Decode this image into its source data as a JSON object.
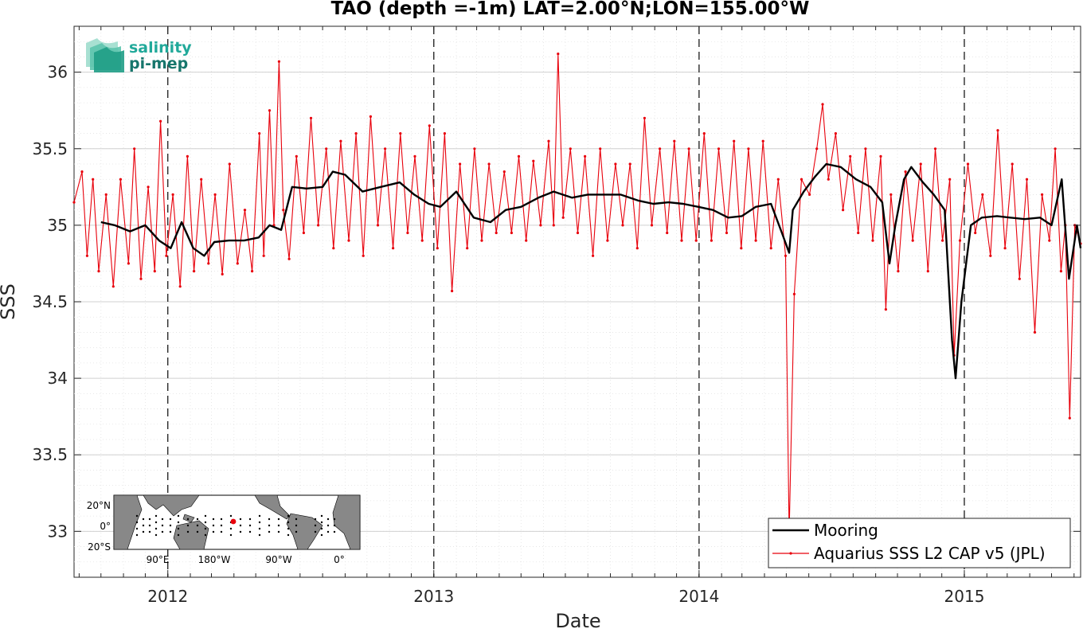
{
  "chart_data": {
    "type": "line",
    "title": "TAO (depth =-1m) LAT=2.00°N;LON=155.00°W",
    "xlabel": "Date",
    "ylabel": "SSS",
    "x_tick_labels": [
      "2012",
      "2013",
      "2014",
      "2015"
    ],
    "y_tick_labels": [
      "33",
      "33.5",
      "34",
      "34.5",
      "35",
      "35.5",
      "36"
    ],
    "xlim": [
      "2011-08-25",
      "2015-06-10"
    ],
    "ylim": [
      32.7,
      36.3
    ],
    "grid": true,
    "year_markers": [
      "2012-01-01",
      "2013-01-01",
      "2014-01-01",
      "2015-01-01"
    ],
    "legend": {
      "position": "bottom-right",
      "entries": [
        "Mooring",
        "Aquarius SSS L2 CAP v5 (JPL)"
      ]
    },
    "series": [
      {
        "name": "Mooring",
        "color": "#000000",
        "points": [
          [
            "2011-10-01",
            35.02
          ],
          [
            "2011-10-20",
            35.0
          ],
          [
            "2011-11-10",
            34.96
          ],
          [
            "2011-12-01",
            35.0
          ],
          [
            "2011-12-20",
            34.9
          ],
          [
            "2012-01-05",
            34.85
          ],
          [
            "2012-01-20",
            35.02
          ],
          [
            "2012-02-05",
            34.85
          ],
          [
            "2012-02-20",
            34.8
          ],
          [
            "2012-03-05",
            34.89
          ],
          [
            "2012-03-25",
            34.9
          ],
          [
            "2012-04-15",
            34.9
          ],
          [
            "2012-05-05",
            34.92
          ],
          [
            "2012-05-20",
            35.0
          ],
          [
            "2012-06-05",
            34.97
          ],
          [
            "2012-06-20",
            35.25
          ],
          [
            "2012-07-10",
            35.24
          ],
          [
            "2012-08-01",
            35.25
          ],
          [
            "2012-08-15",
            35.35
          ],
          [
            "2012-09-01",
            35.33
          ],
          [
            "2012-09-25",
            35.22
          ],
          [
            "2012-10-20",
            35.25
          ],
          [
            "2012-11-15",
            35.28
          ],
          [
            "2012-12-05",
            35.2
          ],
          [
            "2012-12-25",
            35.14
          ],
          [
            "2013-01-10",
            35.12
          ],
          [
            "2013-02-01",
            35.22
          ],
          [
            "2013-02-25",
            35.05
          ],
          [
            "2013-03-20",
            35.02
          ],
          [
            "2013-04-10",
            35.1
          ],
          [
            "2013-05-01",
            35.12
          ],
          [
            "2013-05-25",
            35.18
          ],
          [
            "2013-06-15",
            35.22
          ],
          [
            "2013-07-10",
            35.18
          ],
          [
            "2013-08-01",
            35.2
          ],
          [
            "2013-08-25",
            35.2
          ],
          [
            "2013-09-15",
            35.2
          ],
          [
            "2013-10-10",
            35.16
          ],
          [
            "2013-10-30",
            35.14
          ],
          [
            "2013-11-20",
            35.15
          ],
          [
            "2013-12-10",
            35.14
          ],
          [
            "2013-12-31",
            35.12
          ],
          [
            "2014-01-20",
            35.1
          ],
          [
            "2014-02-10",
            35.05
          ],
          [
            "2014-03-01",
            35.06
          ],
          [
            "2014-03-20",
            35.12
          ],
          [
            "2014-04-10",
            35.14
          ],
          [
            "2014-04-25",
            34.95
          ],
          [
            "2014-05-05",
            34.82
          ],
          [
            "2014-05-10",
            35.1
          ],
          [
            "2014-05-25",
            35.22
          ],
          [
            "2014-06-10",
            35.32
          ],
          [
            "2014-06-25",
            35.4
          ],
          [
            "2014-07-15",
            35.38
          ],
          [
            "2014-08-05",
            35.3
          ],
          [
            "2014-08-25",
            35.25
          ],
          [
            "2014-09-10",
            35.15
          ],
          [
            "2014-09-20",
            34.75
          ],
          [
            "2014-09-28",
            35.0
          ],
          [
            "2014-10-10",
            35.3
          ],
          [
            "2014-10-20",
            35.38
          ],
          [
            "2014-11-05",
            35.28
          ],
          [
            "2014-11-20",
            35.2
          ],
          [
            "2014-12-05",
            35.1
          ],
          [
            "2014-12-15",
            34.25
          ],
          [
            "2014-12-20",
            34.0
          ],
          [
            "2014-12-28",
            34.5
          ],
          [
            "2015-01-10",
            35.0
          ],
          [
            "2015-01-25",
            35.05
          ],
          [
            "2015-02-15",
            35.06
          ],
          [
            "2015-03-05",
            35.05
          ],
          [
            "2015-03-25",
            35.04
          ],
          [
            "2015-04-15",
            35.05
          ],
          [
            "2015-05-01",
            35.0
          ],
          [
            "2015-05-15",
            35.3
          ],
          [
            "2015-05-25",
            34.65
          ],
          [
            "2015-06-05",
            35.0
          ],
          [
            "2015-06-10",
            34.85
          ]
        ]
      },
      {
        "name": "Aquarius SSS L2 CAP v5 (JPL)",
        "color": "#e8000b",
        "points": [
          [
            "2011-08-25",
            35.15
          ],
          [
            "2011-09-05",
            35.35
          ],
          [
            "2011-09-12",
            34.8
          ],
          [
            "2011-09-20",
            35.3
          ],
          [
            "2011-09-28",
            34.7
          ],
          [
            "2011-10-08",
            35.2
          ],
          [
            "2011-10-18",
            34.6
          ],
          [
            "2011-10-28",
            35.3
          ],
          [
            "2011-11-08",
            34.75
          ],
          [
            "2011-11-16",
            35.5
          ],
          [
            "2011-11-25",
            34.65
          ],
          [
            "2011-12-05",
            35.25
          ],
          [
            "2011-12-14",
            34.7
          ],
          [
            "2011-12-22",
            35.68
          ],
          [
            "2011-12-30",
            34.8
          ],
          [
            "2012-01-08",
            35.2
          ],
          [
            "2012-01-18",
            34.6
          ],
          [
            "2012-01-28",
            35.45
          ],
          [
            "2012-02-06",
            34.7
          ],
          [
            "2012-02-16",
            35.3
          ],
          [
            "2012-02-26",
            34.75
          ],
          [
            "2012-03-06",
            35.2
          ],
          [
            "2012-03-16",
            34.68
          ],
          [
            "2012-03-26",
            35.4
          ],
          [
            "2012-04-06",
            34.75
          ],
          [
            "2012-04-16",
            35.1
          ],
          [
            "2012-04-26",
            34.7
          ],
          [
            "2012-05-06",
            35.6
          ],
          [
            "2012-05-12",
            34.8
          ],
          [
            "2012-05-20",
            35.75
          ],
          [
            "2012-05-26",
            35.0
          ],
          [
            "2012-06-02",
            36.07
          ],
          [
            "2012-06-08",
            35.1
          ],
          [
            "2012-06-16",
            34.78
          ],
          [
            "2012-06-26",
            35.45
          ],
          [
            "2012-07-06",
            34.95
          ],
          [
            "2012-07-16",
            35.7
          ],
          [
            "2012-07-26",
            35.0
          ],
          [
            "2012-08-06",
            35.5
          ],
          [
            "2012-08-16",
            34.85
          ],
          [
            "2012-08-26",
            35.55
          ],
          [
            "2012-09-06",
            34.9
          ],
          [
            "2012-09-16",
            35.6
          ],
          [
            "2012-09-26",
            34.8
          ],
          [
            "2012-10-06",
            35.71
          ],
          [
            "2012-10-16",
            35.0
          ],
          [
            "2012-10-26",
            35.5
          ],
          [
            "2012-11-06",
            34.85
          ],
          [
            "2012-11-16",
            35.6
          ],
          [
            "2012-11-26",
            34.95
          ],
          [
            "2012-12-06",
            35.45
          ],
          [
            "2012-12-16",
            34.9
          ],
          [
            "2012-12-26",
            35.65
          ],
          [
            "2013-01-06",
            34.85
          ],
          [
            "2013-01-16",
            35.6
          ],
          [
            "2013-01-26",
            34.57
          ],
          [
            "2013-02-06",
            35.4
          ],
          [
            "2013-02-16",
            34.85
          ],
          [
            "2013-02-26",
            35.5
          ],
          [
            "2013-03-08",
            34.9
          ],
          [
            "2013-03-18",
            35.4
          ],
          [
            "2013-03-28",
            34.95
          ],
          [
            "2013-04-08",
            35.35
          ],
          [
            "2013-04-18",
            34.95
          ],
          [
            "2013-04-28",
            35.45
          ],
          [
            "2013-05-08",
            34.9
          ],
          [
            "2013-05-18",
            35.42
          ],
          [
            "2013-05-28",
            35.0
          ],
          [
            "2013-06-08",
            35.55
          ],
          [
            "2013-06-15",
            35.0
          ],
          [
            "2013-06-21",
            36.12
          ],
          [
            "2013-06-28",
            35.05
          ],
          [
            "2013-07-08",
            35.5
          ],
          [
            "2013-07-18",
            34.95
          ],
          [
            "2013-07-28",
            35.45
          ],
          [
            "2013-08-08",
            34.8
          ],
          [
            "2013-08-18",
            35.5
          ],
          [
            "2013-08-28",
            34.9
          ],
          [
            "2013-09-08",
            35.4
          ],
          [
            "2013-09-18",
            35.0
          ],
          [
            "2013-09-28",
            35.4
          ],
          [
            "2013-10-08",
            34.85
          ],
          [
            "2013-10-18",
            35.7
          ],
          [
            "2013-10-28",
            35.0
          ],
          [
            "2013-11-08",
            35.5
          ],
          [
            "2013-11-18",
            34.95
          ],
          [
            "2013-11-28",
            35.55
          ],
          [
            "2013-12-08",
            34.9
          ],
          [
            "2013-12-18",
            35.5
          ],
          [
            "2013-12-28",
            34.9
          ],
          [
            "2014-01-08",
            35.6
          ],
          [
            "2014-01-18",
            34.9
          ],
          [
            "2014-01-28",
            35.5
          ],
          [
            "2014-02-08",
            34.95
          ],
          [
            "2014-02-18",
            35.55
          ],
          [
            "2014-02-28",
            34.85
          ],
          [
            "2014-03-10",
            35.5
          ],
          [
            "2014-03-20",
            34.9
          ],
          [
            "2014-03-30",
            35.55
          ],
          [
            "2014-04-10",
            34.85
          ],
          [
            "2014-04-20",
            35.3
          ],
          [
            "2014-04-30",
            34.8
          ],
          [
            "2014-05-05",
            32.98
          ],
          [
            "2014-05-12",
            34.55
          ],
          [
            "2014-05-22",
            35.3
          ],
          [
            "2014-06-02",
            35.2
          ],
          [
            "2014-06-12",
            35.5
          ],
          [
            "2014-06-20",
            35.79
          ],
          [
            "2014-06-28",
            35.3
          ],
          [
            "2014-07-08",
            35.6
          ],
          [
            "2014-07-18",
            35.1
          ],
          [
            "2014-07-28",
            35.45
          ],
          [
            "2014-08-08",
            34.95
          ],
          [
            "2014-08-18",
            35.5
          ],
          [
            "2014-08-28",
            34.9
          ],
          [
            "2014-09-08",
            35.45
          ],
          [
            "2014-09-15",
            34.45
          ],
          [
            "2014-09-22",
            35.2
          ],
          [
            "2014-10-02",
            34.7
          ],
          [
            "2014-10-12",
            35.35
          ],
          [
            "2014-10-22",
            34.9
          ],
          [
            "2014-11-02",
            35.4
          ],
          [
            "2014-11-12",
            34.7
          ],
          [
            "2014-11-22",
            35.5
          ],
          [
            "2014-12-02",
            34.9
          ],
          [
            "2014-12-12",
            35.3
          ],
          [
            "2014-12-18",
            34.15
          ],
          [
            "2014-12-26",
            34.9
          ],
          [
            "2015-01-06",
            35.4
          ],
          [
            "2015-01-16",
            34.95
          ],
          [
            "2015-01-26",
            35.2
          ],
          [
            "2015-02-06",
            34.8
          ],
          [
            "2015-02-16",
            35.62
          ],
          [
            "2015-02-26",
            34.85
          ],
          [
            "2015-03-08",
            35.4
          ],
          [
            "2015-03-18",
            34.65
          ],
          [
            "2015-03-28",
            35.3
          ],
          [
            "2015-04-08",
            34.3
          ],
          [
            "2015-04-18",
            35.2
          ],
          [
            "2015-04-28",
            34.9
          ],
          [
            "2015-05-06",
            35.5
          ],
          [
            "2015-05-14",
            34.7
          ],
          [
            "2015-05-20",
            35.0
          ],
          [
            "2015-05-26",
            33.74
          ],
          [
            "2015-06-02",
            35.0
          ],
          [
            "2015-06-10",
            34.88
          ]
        ]
      }
    ]
  },
  "logo": {
    "line1": "salinity",
    "line2": "pi-mep"
  },
  "inset_map": {
    "lat_labels": [
      "20°N",
      "0°",
      "20°S"
    ],
    "lon_labels": [
      "90°E",
      "180°W",
      "90°W",
      "0°"
    ]
  }
}
